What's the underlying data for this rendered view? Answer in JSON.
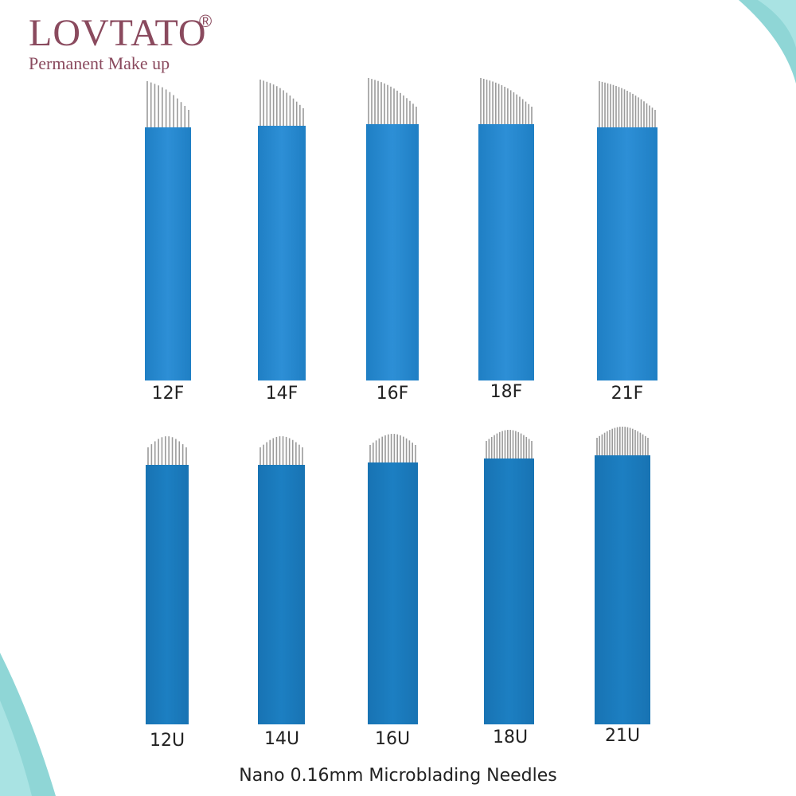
{
  "brand": {
    "name": "LOVTATO",
    "registered": "®",
    "tagline": "Permanent Make up"
  },
  "colors": {
    "brand": "#8a4a5e",
    "blade_blue_f": "#2d8fd6",
    "blade_blue_u": "#1c7fc2",
    "needle": "#9a9a9a",
    "accent_teal": "#8fd6d6"
  },
  "products": {
    "flex_row": [
      {
        "label": "12F",
        "needles": 12,
        "tip_shape": "slanted"
      },
      {
        "label": "14F",
        "needles": 14,
        "tip_shape": "slanted"
      },
      {
        "label": "16F",
        "needles": 16,
        "tip_shape": "slanted"
      },
      {
        "label": "18F",
        "needles": 18,
        "tip_shape": "slanted"
      },
      {
        "label": "21F",
        "needles": 21,
        "tip_shape": "slanted"
      }
    ],
    "u_row": [
      {
        "label": "12U",
        "needles": 12,
        "tip_shape": "u-curve"
      },
      {
        "label": "14U",
        "needles": 14,
        "tip_shape": "u-curve"
      },
      {
        "label": "16U",
        "needles": 16,
        "tip_shape": "u-curve"
      },
      {
        "label": "18U",
        "needles": 18,
        "tip_shape": "u-curve"
      },
      {
        "label": "21U",
        "needles": 21,
        "tip_shape": "u-curve"
      }
    ]
  },
  "caption": "Nano 0.16mm Microblading Needles"
}
